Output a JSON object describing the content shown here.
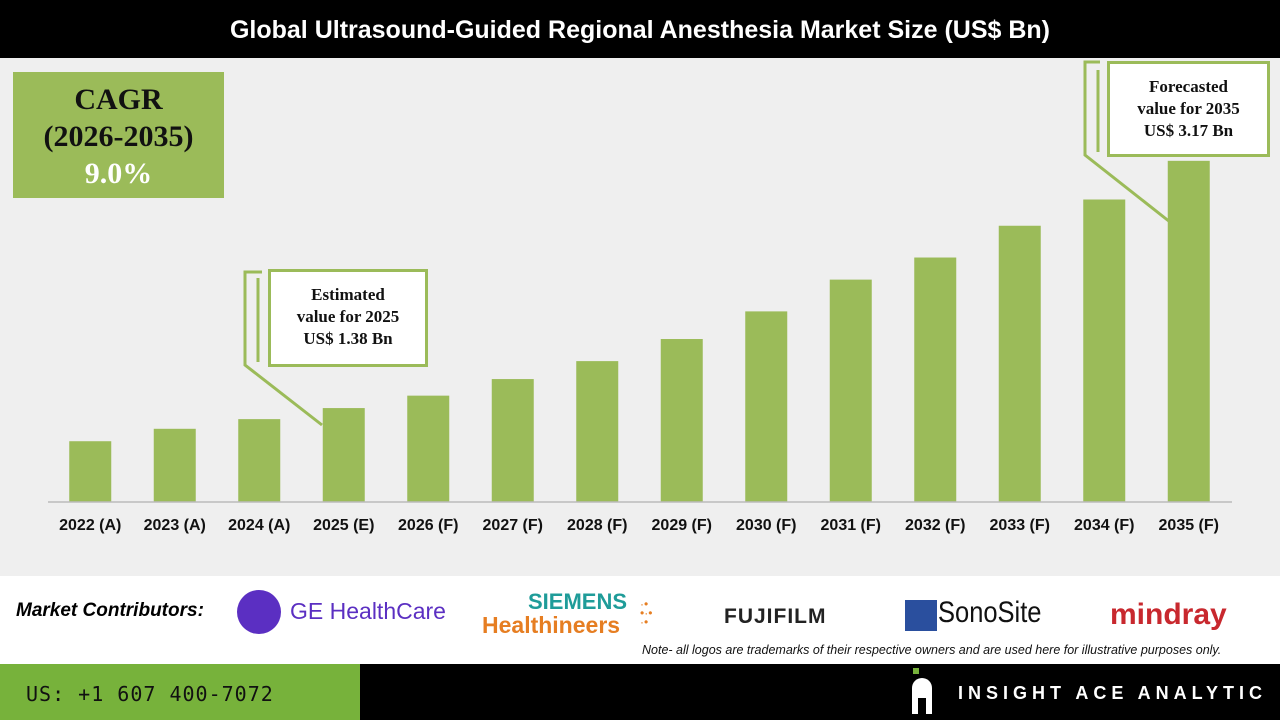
{
  "title": "Global Ultrasound-Guided Regional Anesthesia Market Size (US$ Bn)",
  "cagr": {
    "label": "CAGR",
    "period": "(2026-2035)",
    "value": "9.0%"
  },
  "callouts": {
    "estimated": [
      "Estimated",
      "value for 2025",
      "US$ 1.38 Bn"
    ],
    "forecasted": [
      "Forecasted",
      "value for 2035",
      "US$ 3.17 Bn"
    ]
  },
  "colors": {
    "bar": "#9bbb59",
    "accent_green": "#77b23b",
    "background": "#efefef"
  },
  "chart_data": {
    "type": "bar",
    "title": "Global Ultrasound-Guided Regional Anesthesia Market Size (US$ Bn)",
    "categories": [
      "2022 (A)",
      "2023 (A)",
      "2024 (A)",
      "2025 (E)",
      "2026 (F)",
      "2027 (F)",
      "2028 (F)",
      "2029 (F)",
      "2030 (F)",
      "2031 (F)",
      "2032 (F)",
      "2033 (F)",
      "2034 (F)",
      "2035 (F)"
    ],
    "values": [
      1.14,
      1.23,
      1.3,
      1.38,
      1.47,
      1.59,
      1.72,
      1.88,
      2.08,
      2.31,
      2.47,
      2.7,
      2.89,
      3.17
    ],
    "xlabel": "",
    "ylabel": "",
    "ylim": [
      0.7,
      3.9
    ],
    "grid": false
  },
  "contributors": {
    "label": "Market Contributors:",
    "logos": [
      "GE HealthCare",
      "SIEMENS",
      "Healthineers",
      "FUJIFILM",
      "SonoSite",
      "mindray"
    ],
    "note": "Note- all logos are trademarks of their respective owners and are used here for illustrative purposes only."
  },
  "footer": {
    "phone": "US: +1 607 400-7072",
    "brand": "INSIGHT ACE ANALYTIC"
  }
}
